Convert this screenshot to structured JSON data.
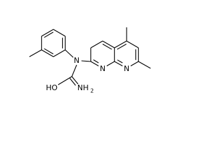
{
  "atoms": [
    {
      "label": "N"
    },
    {
      "label": "N"
    },
    {
      "label": "N"
    },
    {
      "label": "HO"
    },
    {
      "label": "NH",
      "subscript": "2"
    }
  ]
}
